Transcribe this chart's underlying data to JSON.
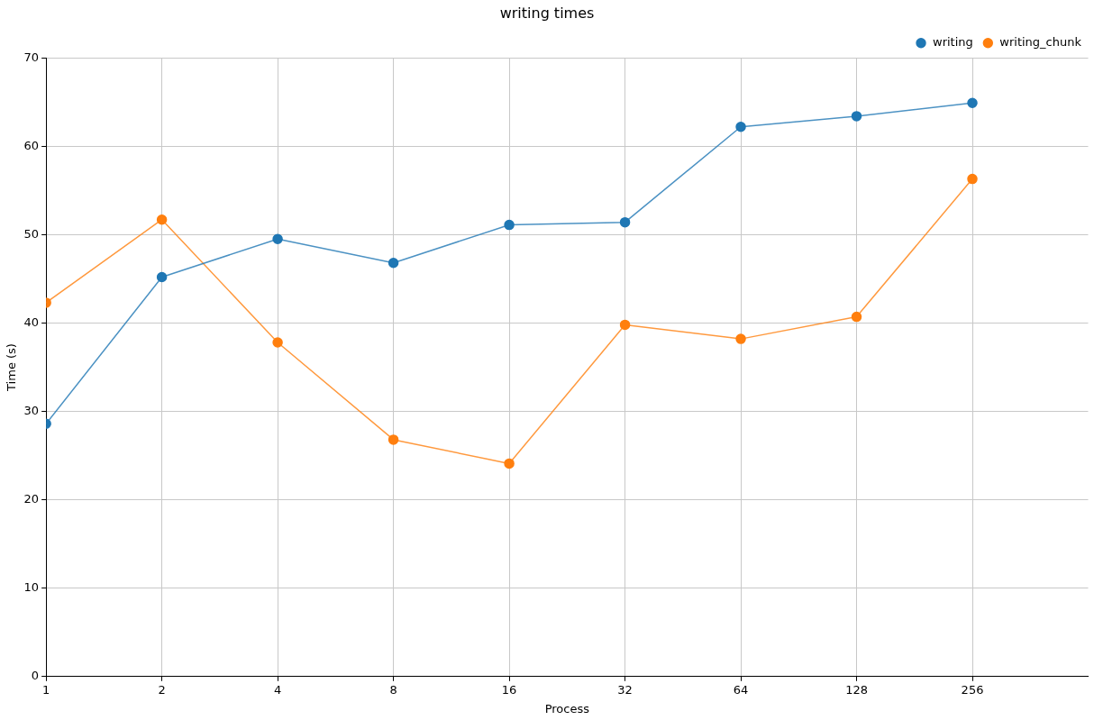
{
  "chart_data": {
    "type": "line",
    "title": "writing times",
    "xlabel": "Process",
    "ylabel": "Time (s)",
    "x": [
      1,
      2,
      4,
      8,
      16,
      32,
      64,
      128,
      256
    ],
    "log": "x",
    "xlim": [
      1,
      512
    ],
    "xticks": [
      1,
      2,
      4,
      8,
      16,
      32,
      64,
      128,
      256
    ],
    "ylim": [
      0,
      70
    ],
    "yticks": [
      0,
      10,
      20,
      30,
      40,
      50,
      60,
      70
    ],
    "grid": true,
    "legend": "top right",
    "marker": "circle",
    "line_style": "solid",
    "series": [
      {
        "name": "writing",
        "color": "#1f77b4",
        "values": [
          28.6,
          45.2,
          49.5,
          46.8,
          51.1,
          51.4,
          62.2,
          63.4,
          64.9
        ]
      },
      {
        "name": "writing_chunk",
        "color": "#ff7f0e",
        "values": [
          42.3,
          51.7,
          37.8,
          26.8,
          24.1,
          39.8,
          38.2,
          40.7,
          56.3
        ]
      }
    ]
  }
}
